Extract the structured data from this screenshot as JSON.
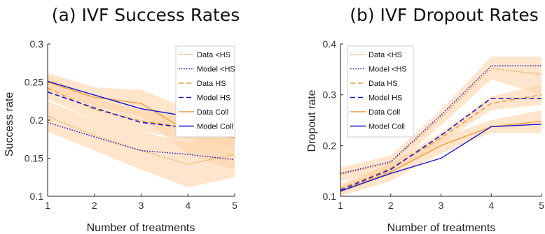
{
  "chart_data": [
    {
      "type": "line",
      "title": "(a) IVF Success Rates",
      "xlabel": "Number of treatments",
      "ylabel": "Success rate",
      "x": [
        1,
        2,
        3,
        4,
        5
      ],
      "xlim": [
        1,
        5
      ],
      "ylim": [
        0.1,
        0.3
      ],
      "xticks": [
        "1",
        "2",
        "3",
        "4",
        "5"
      ],
      "yticks": [
        "0.1",
        "0.15",
        "0.2",
        "0.25",
        "0.3"
      ],
      "legend_position": "top-right",
      "series": [
        {
          "name": "Data <HS",
          "color": "#f39a3a",
          "dash": "dotted",
          "values": [
            0.205,
            0.18,
            0.16,
            0.142,
            0.155
          ],
          "band": [
            [
              0.185,
              0.225
            ],
            [
              0.16,
              0.2
            ],
            [
              0.135,
              0.185
            ],
            [
              0.112,
              0.17
            ],
            [
              0.125,
              0.185
            ]
          ]
        },
        {
          "name": "Model <HS",
          "color": "#1515d0",
          "dash": "dotted",
          "values": [
            0.197,
            0.178,
            0.16,
            0.155,
            0.148
          ]
        },
        {
          "name": "Data HS",
          "color": "#f39a3a",
          "dash": "dashed",
          "values": [
            0.242,
            0.214,
            0.199,
            0.19,
            0.182
          ],
          "band": [
            [
              0.228,
              0.258
            ],
            [
              0.2,
              0.228
            ],
            [
              0.185,
              0.213
            ],
            [
              0.175,
              0.205
            ],
            [
              0.165,
              0.2
            ]
          ]
        },
        {
          "name": "Model HS",
          "color": "#1515d0",
          "dash": "dashed",
          "values": [
            0.237,
            0.216,
            0.197,
            0.19,
            0.177
          ]
        },
        {
          "name": "Data Coll",
          "color": "#f39a3a",
          "dash": "solid",
          "values": [
            0.25,
            0.23,
            0.222,
            0.185,
            0.177
          ],
          "band": [
            [
              0.24,
              0.262
            ],
            [
              0.218,
              0.243
            ],
            [
              0.205,
              0.24
            ],
            [
              0.155,
              0.215
            ],
            [
              0.135,
              0.22
            ]
          ]
        },
        {
          "name": "Model Coll",
          "color": "#1515d0",
          "dash": "solid",
          "values": [
            0.251,
            0.233,
            0.215,
            0.205,
            0.194
          ]
        }
      ]
    },
    {
      "type": "line",
      "title": "(b) IVF Dropout Rates",
      "xlabel": "Number of treatments",
      "ylabel": "Dropout rate",
      "x": [
        1,
        2,
        3,
        4,
        5
      ],
      "xlim": [
        1,
        5
      ],
      "ylim": [
        0.1,
        0.4
      ],
      "xticks": [
        "1",
        "2",
        "3",
        "4",
        "5"
      ],
      "yticks": [
        "0.1",
        "0.2",
        "0.3",
        "0.4"
      ],
      "legend_position": "top-left",
      "series": [
        {
          "name": "Data <HS",
          "color": "#f39a3a",
          "dash": "dotted",
          "values": [
            0.143,
            0.166,
            0.255,
            0.352,
            0.34
          ],
          "band": [
            [
              0.13,
              0.157
            ],
            [
              0.153,
              0.18
            ],
            [
              0.24,
              0.27
            ],
            [
              0.33,
              0.375
            ],
            [
              0.3,
              0.375
            ]
          ]
        },
        {
          "name": "Model <HS",
          "color": "#1515d0",
          "dash": "dotted",
          "values": [
            0.145,
            0.168,
            0.26,
            0.357,
            0.357
          ]
        },
        {
          "name": "Data HS",
          "color": "#f39a3a",
          "dash": "dashed",
          "values": [
            0.115,
            0.155,
            0.215,
            0.283,
            0.3
          ],
          "band": [
            [
              0.105,
              0.125
            ],
            [
              0.145,
              0.165
            ],
            [
              0.205,
              0.225
            ],
            [
              0.27,
              0.297
            ],
            [
              0.28,
              0.32
            ]
          ]
        },
        {
          "name": "Model HS",
          "color": "#1515d0",
          "dash": "dashed",
          "values": [
            0.112,
            0.153,
            0.22,
            0.293,
            0.293
          ]
        },
        {
          "name": "Data Coll",
          "color": "#f39a3a",
          "dash": "solid",
          "values": [
            0.11,
            0.148,
            0.2,
            0.237,
            0.248
          ],
          "band": [
            [
              0.1,
              0.12
            ],
            [
              0.13,
              0.165
            ],
            [
              0.185,
              0.215
            ],
            [
              0.225,
              0.25
            ],
            [
              0.225,
              0.27
            ]
          ]
        },
        {
          "name": "Model Coll",
          "color": "#1515d0",
          "dash": "solid",
          "values": [
            0.11,
            0.145,
            0.175,
            0.237,
            0.242
          ]
        }
      ]
    }
  ]
}
